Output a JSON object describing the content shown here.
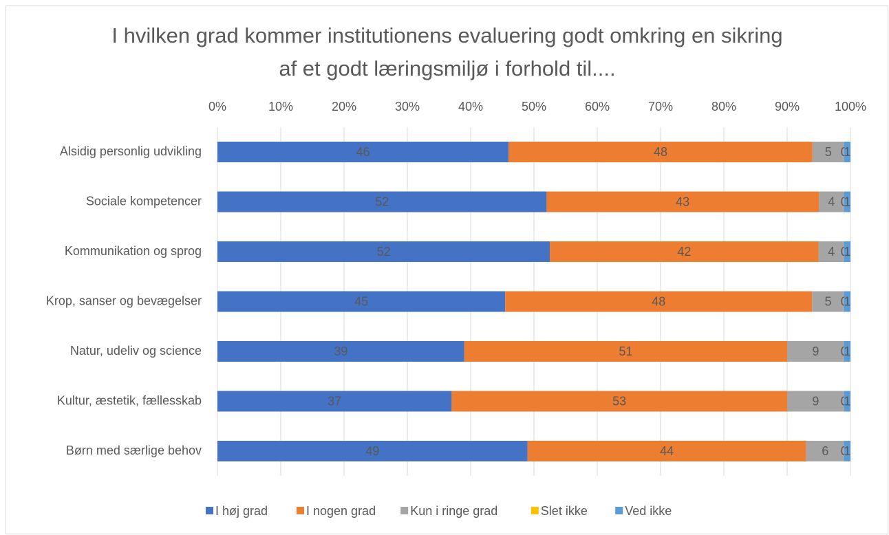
{
  "chart_data": {
    "type": "bar",
    "orientation": "horizontal",
    "stack": "percent",
    "title": "I hvilken grad kommer institutionens evaluering godt omkring en sikring af et godt læringsmiljø i forhold til....",
    "categories": [
      "Alsidig personlig udvikling",
      "Sociale kompetencer",
      "Kommunikation og sprog",
      "Krop, sanser og bevægelser",
      "Natur, udeliv og science",
      "Kultur, æstetik, fællesskab",
      "Børn med særlige behov"
    ],
    "series": [
      {
        "name": "I høj grad",
        "color": "#4472c4",
        "values": [
          46,
          52,
          52,
          45,
          39,
          37,
          49
        ]
      },
      {
        "name": "I nogen grad",
        "color": "#ed7d31",
        "values": [
          48,
          43,
          42,
          48,
          51,
          53,
          44
        ]
      },
      {
        "name": "Kun i ringe grad",
        "color": "#a5a5a5",
        "values": [
          5,
          4,
          4,
          5,
          9,
          9,
          6
        ]
      },
      {
        "name": "Slet ikke",
        "color": "#ffc000",
        "values": [
          0,
          0,
          0,
          0,
          0,
          0,
          0
        ]
      },
      {
        "name": "Ved ikke",
        "color": "#5b9bd5",
        "values": [
          1,
          1,
          1,
          1,
          1,
          1,
          1
        ]
      }
    ],
    "xlim": [
      0,
      100
    ],
    "xticks": [
      {
        "value": 0,
        "label": "0%"
      },
      {
        "value": 10,
        "label": "10%"
      },
      {
        "value": 20,
        "label": "20%"
      },
      {
        "value": 30,
        "label": "30%"
      },
      {
        "value": 40,
        "label": "40%"
      },
      {
        "value": 50,
        "label": "50%"
      },
      {
        "value": 60,
        "label": "60%"
      },
      {
        "value": 70,
        "label": "70%"
      },
      {
        "value": 80,
        "label": "80%"
      },
      {
        "value": 90,
        "label": "90%"
      },
      {
        "value": 100,
        "label": "100%"
      }
    ],
    "grid": true,
    "legend": "bottom"
  }
}
